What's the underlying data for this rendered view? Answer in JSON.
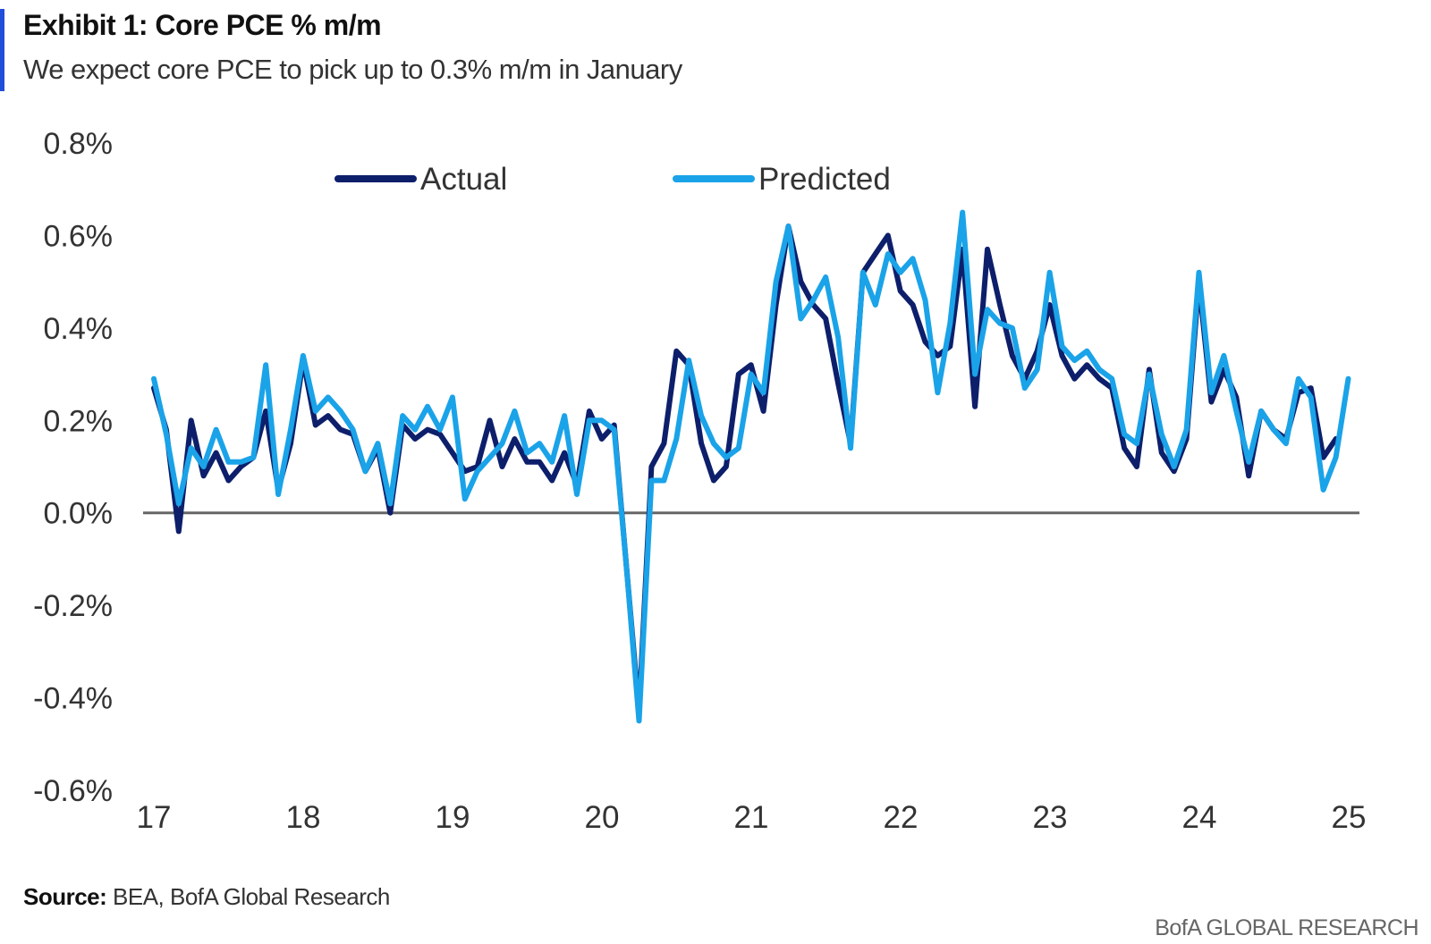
{
  "header": {
    "title": "Exhibit 1: Core PCE % m/m",
    "subtitle": "We expect core PCE to pick up to 0.3% m/m in January"
  },
  "footer": {
    "source_label": "Source:",
    "source_text": " BEA, BofA Global Research",
    "brand": "BofA GLOBAL RESEARCH"
  },
  "colors": {
    "accent": "#1f4ed8",
    "actual": "#0d1f6b",
    "predicted": "#1aa3e8",
    "zero_line": "#666666"
  },
  "chart_data": {
    "type": "line",
    "title": "Exhibit 1: Core PCE % m/m",
    "subtitle": "We expect core PCE to pick up to 0.3% m/m in January",
    "xlabel": "",
    "ylabel": "",
    "x_start_year": 17,
    "x_step_years": 0.0833,
    "xlim": [
      17,
      25
    ],
    "x_ticks": [
      "17",
      "18",
      "19",
      "20",
      "21",
      "22",
      "23",
      "24",
      "25"
    ],
    "ylim": [
      -0.6,
      0.8
    ],
    "y_ticks": [
      "0.8%",
      "0.6%",
      "0.4%",
      "0.2%",
      "0.0%",
      "-0.2%",
      "-0.4%",
      "-0.6%"
    ],
    "y_tick_values": [
      0.8,
      0.6,
      0.4,
      0.2,
      0.0,
      -0.2,
      -0.4,
      -0.6
    ],
    "grid": false,
    "legend_position": "top",
    "series": [
      {
        "name": "Actual",
        "values": [
          0.27,
          0.18,
          -0.04,
          0.2,
          0.08,
          0.13,
          0.07,
          0.1,
          0.12,
          0.22,
          0.05,
          0.15,
          0.33,
          0.19,
          0.21,
          0.18,
          0.17,
          0.09,
          0.14,
          0.0,
          0.19,
          0.16,
          0.18,
          0.17,
          0.13,
          0.09,
          0.1,
          0.2,
          0.1,
          0.16,
          0.11,
          0.11,
          0.07,
          0.13,
          0.06,
          0.22,
          0.16,
          0.19,
          -0.12,
          -0.43,
          0.1,
          0.15,
          0.35,
          0.32,
          0.15,
          0.07,
          0.1,
          0.3,
          0.32,
          0.22,
          0.45,
          0.62,
          0.5,
          0.45,
          0.42,
          0.28,
          0.15,
          0.52,
          0.56,
          0.6,
          0.48,
          0.45,
          0.37,
          0.34,
          0.36,
          0.57,
          0.23,
          0.57,
          0.45,
          0.34,
          0.29,
          0.35,
          0.45,
          0.34,
          0.29,
          0.32,
          0.29,
          0.27,
          0.14,
          0.1,
          0.31,
          0.13,
          0.09,
          0.16,
          0.5,
          0.24,
          0.31,
          0.25,
          0.08,
          0.22,
          0.18,
          0.16,
          0.26,
          0.27,
          0.12,
          0.16
        ],
        "color": "#0d1f6b"
      },
      {
        "name": "Predicted",
        "values": [
          0.29,
          0.17,
          0.02,
          0.14,
          0.1,
          0.18,
          0.11,
          0.11,
          0.12,
          0.32,
          0.04,
          0.18,
          0.34,
          0.22,
          0.25,
          0.22,
          0.18,
          0.09,
          0.15,
          0.02,
          0.21,
          0.18,
          0.23,
          0.18,
          0.25,
          0.03,
          0.09,
          0.12,
          0.15,
          0.22,
          0.13,
          0.15,
          0.11,
          0.21,
          0.04,
          0.2,
          0.2,
          0.18,
          -0.12,
          -0.45,
          0.07,
          0.07,
          0.16,
          0.33,
          0.21,
          0.15,
          0.12,
          0.14,
          0.3,
          0.26,
          0.5,
          0.62,
          0.42,
          0.46,
          0.51,
          0.38,
          0.14,
          0.52,
          0.45,
          0.56,
          0.52,
          0.55,
          0.46,
          0.26,
          0.41,
          0.65,
          0.3,
          0.44,
          0.41,
          0.4,
          0.27,
          0.31,
          0.52,
          0.36,
          0.33,
          0.35,
          0.31,
          0.29,
          0.17,
          0.15,
          0.3,
          0.17,
          0.1,
          0.18,
          0.52,
          0.26,
          0.34,
          0.22,
          0.11,
          0.22,
          0.18,
          0.15,
          0.29,
          0.25,
          0.05,
          0.12,
          0.29
        ],
        "color": "#1aa3e8"
      }
    ]
  }
}
